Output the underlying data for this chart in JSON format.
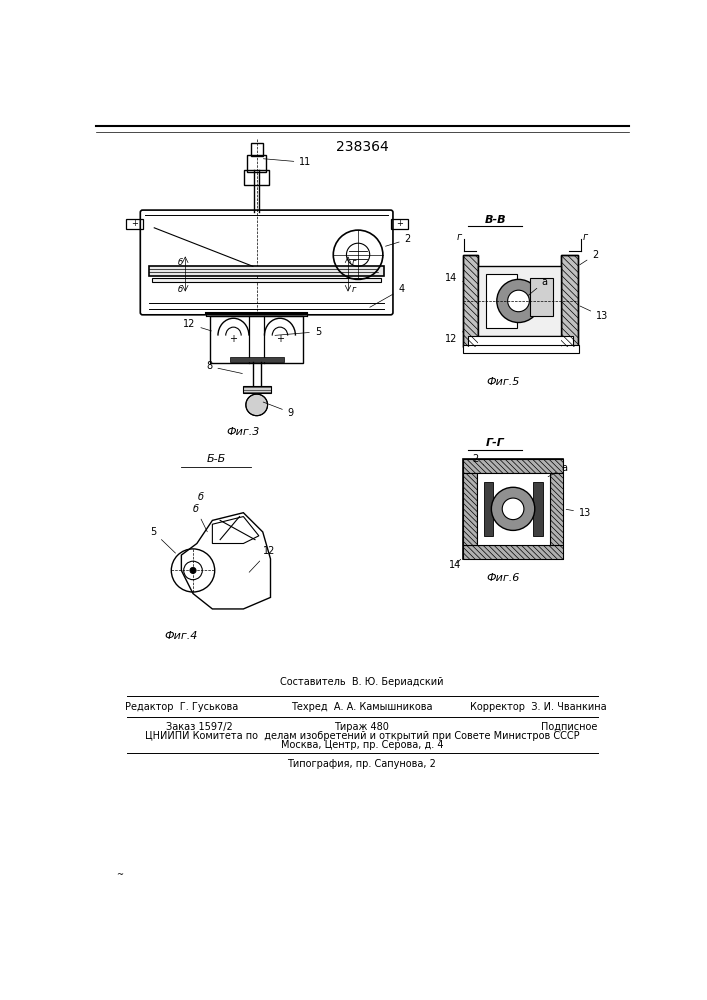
{
  "patent_number": "238364",
  "background_color": "#ffffff",
  "fig3_label": "Фиг.3",
  "fig4_label": "Фиг.4",
  "fig5_label": "Фиг.5",
  "fig6_label": "Фиг.6",
  "section_bb": "В-В",
  "section_gg": "Г-Г",
  "section_bb2": "Б-Б",
  "footer": {
    "составитель": "Составитель  В. Ю. Бериадский",
    "редактор": "Редактор  Г. Гуськова",
    "техред": "Техред  А. А. Камышникова",
    "корректор": "Корректор  З. И. Чванкина",
    "заказ": "Заказ 1597/2",
    "тираж": "Тираж 480",
    "подписное": "Подписное",
    "цниипи": "ЦНИИПИ Комитета по  делам изобретений и открытий при Совете Министров СССР",
    "москва": "Москва, Центр, пр. Серова, д. 4",
    "типография": "Типография, пр. Сапунова, 2"
  }
}
